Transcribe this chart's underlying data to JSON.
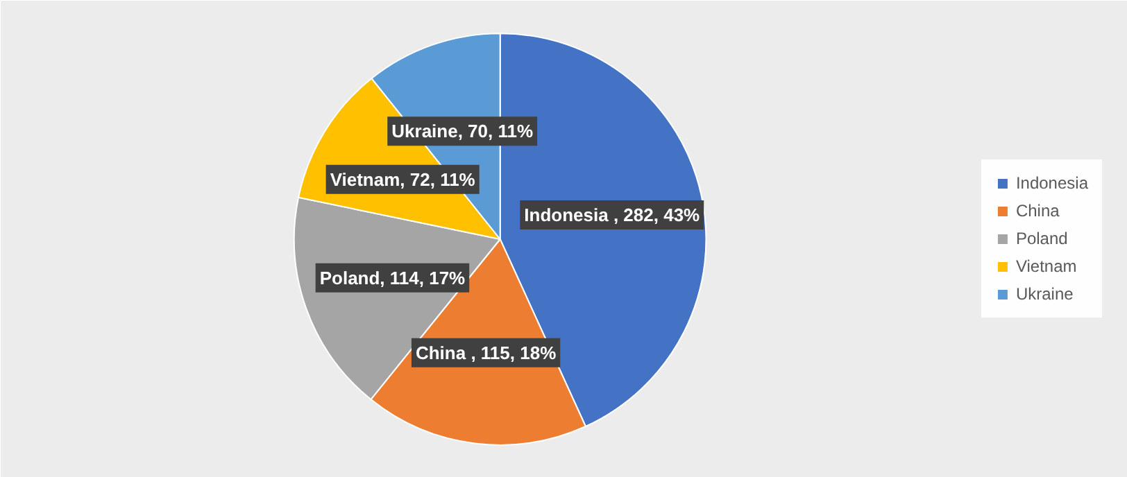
{
  "chart_data": {
    "type": "pie",
    "categories": [
      "Indonesia",
      "China",
      "Poland",
      "Vietnam",
      "Ukraine"
    ],
    "values": [
      282,
      115,
      114,
      72,
      70
    ],
    "colors": [
      "#4472c4",
      "#ed7d31",
      "#a5a5a5",
      "#ffc000",
      "#5b9bd5"
    ],
    "value_labels": [
      "Indonesia , 282, 43%",
      "China , 115, 18%",
      "Poland, 114, 17%",
      "Vietnam, 72, 11%",
      "Ukraine, 70, 11%"
    ],
    "legend": "right"
  }
}
